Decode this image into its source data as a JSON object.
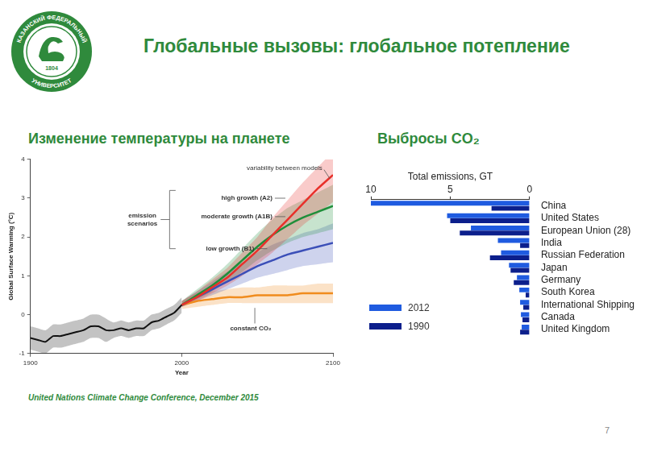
{
  "header": {
    "title": "Глобальные вызовы: глобальное потепление",
    "logo": {
      "top_text": "КАЗАНСКИЙ ФЕДЕРАЛЬНЫЙ",
      "bottom_text": "УНИВЕРСИТЕТ",
      "year": "1804"
    }
  },
  "footer": "United Nations Climate Change Conference, December 2015",
  "page_number": "7",
  "chart_data": [
    {
      "type": "line",
      "title": "Изменение температуры на планете",
      "x_label": "Year",
      "y_label": "Global Surface Warming (°C)",
      "xlim": [
        1900,
        2100
      ],
      "xticks": [
        1900,
        2000,
        2100
      ],
      "ylim": [
        -1,
        4
      ],
      "yticks": [
        -1,
        0,
        1,
        2,
        3,
        4
      ],
      "grid": false,
      "annotations": [
        "variability between models",
        "emission scenarios"
      ],
      "series": [
        {
          "color": "#111111",
          "x": [
            1900,
            1905,
            1910,
            1915,
            1920,
            1925,
            1930,
            1935,
            1940,
            1945,
            1950,
            1955,
            1960,
            1965,
            1970,
            1975,
            1980,
            1985,
            1990,
            1995,
            2000
          ],
          "values": [
            -0.6,
            -0.65,
            -0.7,
            -0.55,
            -0.55,
            -0.5,
            -0.45,
            -0.4,
            -0.3,
            -0.3,
            -0.4,
            -0.4,
            -0.35,
            -0.4,
            -0.35,
            -0.35,
            -0.2,
            -0.15,
            -0.05,
            0.05,
            0.25
          ],
          "band": {
            "low": [
              -0.9,
              -0.95,
              -1.0,
              -0.85,
              -0.85,
              -0.8,
              -0.75,
              -0.7,
              -0.6,
              -0.6,
              -0.7,
              -0.6,
              -0.55,
              -0.6,
              -0.55,
              -0.55,
              -0.4,
              -0.35,
              -0.25,
              -0.15,
              0.05
            ],
            "high": [
              -0.3,
              -0.35,
              -0.4,
              -0.25,
              -0.25,
              -0.2,
              -0.15,
              -0.1,
              0.0,
              0.0,
              -0.1,
              -0.2,
              -0.15,
              -0.2,
              -0.15,
              -0.15,
              0.0,
              0.05,
              0.15,
              0.25,
              0.45
            ]
          }
        },
        {
          "name": "high growth (A2)",
          "color": "#e8302a",
          "x": [
            2000,
            2010,
            2020,
            2030,
            2040,
            2050,
            2060,
            2070,
            2080,
            2090,
            2100
          ],
          "values": [
            0.25,
            0.45,
            0.7,
            0.95,
            1.3,
            1.65,
            2.05,
            2.45,
            2.85,
            3.25,
            3.6
          ],
          "band": {
            "low": [
              0.2,
              0.35,
              0.55,
              0.75,
              1.0,
              1.3,
              1.6,
              1.95,
              2.3,
              2.6,
              2.9
            ],
            "high": [
              0.35,
              0.6,
              0.9,
              1.2,
              1.6,
              2.0,
              2.5,
              2.95,
              3.4,
              3.8,
              4.2
            ]
          }
        },
        {
          "name": "moderate growth (A1B)",
          "color": "#1f8f3a",
          "x": [
            2000,
            2010,
            2020,
            2030,
            2040,
            2050,
            2060,
            2070,
            2080,
            2090,
            2100
          ],
          "values": [
            0.25,
            0.5,
            0.75,
            1.05,
            1.4,
            1.75,
            2.05,
            2.3,
            2.5,
            2.65,
            2.8
          ],
          "band": {
            "low": [
              0.2,
              0.4,
              0.6,
              0.85,
              1.1,
              1.4,
              1.65,
              1.85,
              2.0,
              2.1,
              2.2
            ],
            "high": [
              0.35,
              0.65,
              0.95,
              1.3,
              1.7,
              2.1,
              2.45,
              2.75,
              2.95,
              3.15,
              3.35
            ]
          }
        },
        {
          "name": "low growth (B1)",
          "color": "#3b4fb8",
          "x": [
            2000,
            2010,
            2020,
            2030,
            2040,
            2050,
            2060,
            2070,
            2080,
            2090,
            2100
          ],
          "values": [
            0.25,
            0.45,
            0.65,
            0.85,
            1.05,
            1.25,
            1.4,
            1.55,
            1.65,
            1.75,
            1.85
          ],
          "band": {
            "low": [
              0.2,
              0.35,
              0.5,
              0.65,
              0.8,
              0.95,
              1.05,
              1.15,
              1.25,
              1.3,
              1.35
            ],
            "high": [
              0.35,
              0.6,
              0.85,
              1.1,
              1.35,
              1.6,
              1.8,
              1.95,
              2.1,
              2.2,
              2.35
            ]
          }
        },
        {
          "name": "constant CO₂",
          "color": "#f08c1e",
          "x": [
            2000,
            2010,
            2020,
            2030,
            2040,
            2050,
            2060,
            2070,
            2080,
            2090,
            2100
          ],
          "values": [
            0.25,
            0.35,
            0.4,
            0.45,
            0.45,
            0.5,
            0.5,
            0.5,
            0.55,
            0.55,
            0.55
          ],
          "band": {
            "low": [
              0.15,
              0.2,
              0.25,
              0.3,
              0.3,
              0.3,
              0.3,
              0.3,
              0.3,
              0.3,
              0.3
            ],
            "high": [
              0.35,
              0.55,
              0.6,
              0.65,
              0.7,
              0.7,
              0.75,
              0.75,
              0.75,
              0.8,
              0.8
            ]
          }
        }
      ]
    },
    {
      "type": "bar",
      "orientation": "horizontal",
      "title": "Выбросы CO₂",
      "x_label": "Total emissions, GT",
      "xlim": [
        10,
        0
      ],
      "xticks": [
        10,
        5,
        0
      ],
      "grid": false,
      "legend": "lower left",
      "categories": [
        "China",
        "United States",
        "European Union (28)",
        "India",
        "Russian Federation",
        "Japan",
        "Germany",
        "South Korea",
        "International Shipping",
        "Canada",
        "United Kingdom"
      ],
      "series": [
        {
          "name": "2012",
          "color": "#1f5be0",
          "values": [
            10.0,
            5.2,
            3.7,
            2.0,
            1.8,
            1.3,
            0.8,
            0.65,
            0.6,
            0.55,
            0.5
          ]
        },
        {
          "name": "1990",
          "color": "#0c1f8c",
          "values": [
            2.4,
            5.0,
            4.4,
            0.6,
            2.5,
            1.2,
            1.0,
            0.25,
            0.4,
            0.45,
            0.6
          ]
        }
      ]
    }
  ]
}
